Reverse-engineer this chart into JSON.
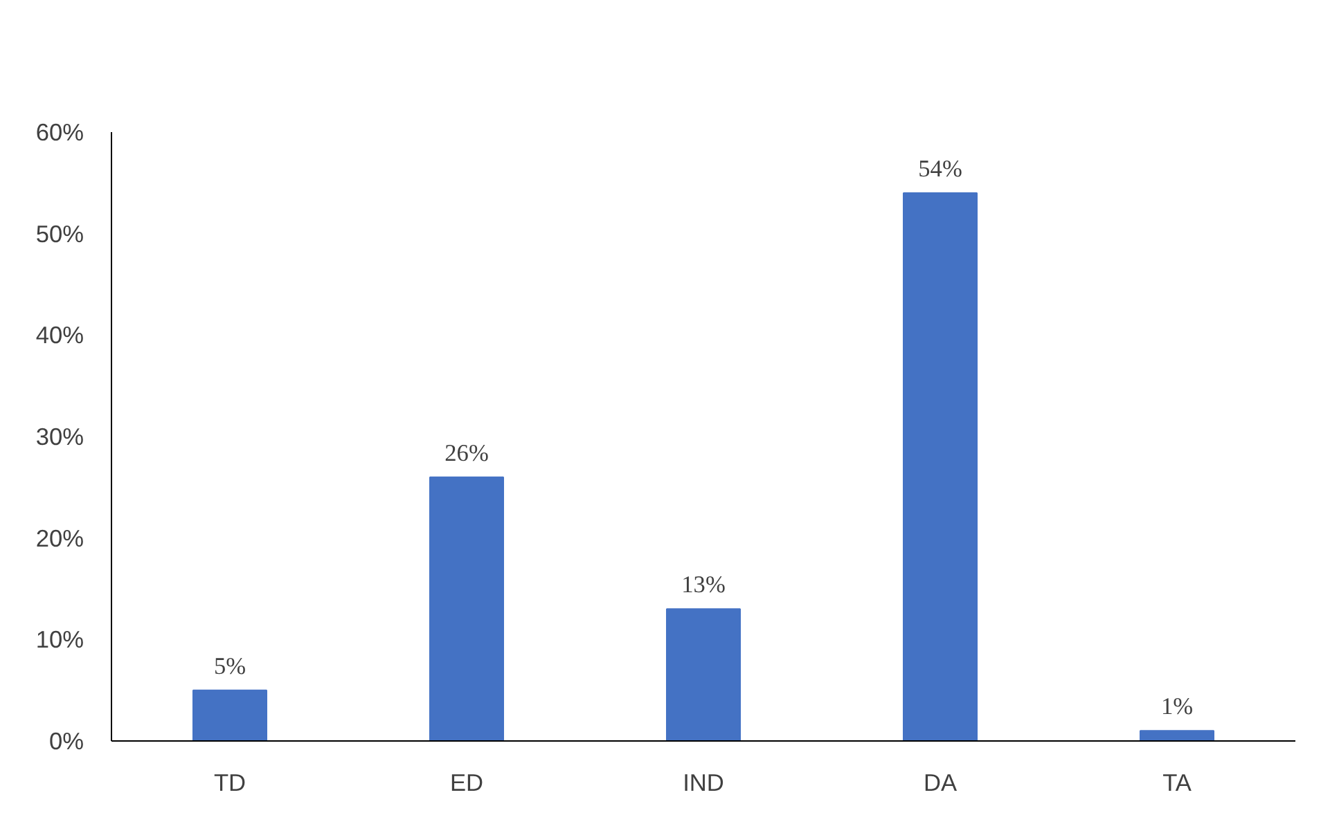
{
  "chart_data": {
    "type": "bar",
    "categories": [
      "TD",
      "ED",
      "IND",
      "DA",
      "TA"
    ],
    "values": [
      5,
      26,
      13,
      54,
      1
    ],
    "value_labels": [
      "5%",
      "26%",
      "13%",
      "54%",
      "1%"
    ],
    "color": "#4472c4",
    "ylim": [
      0,
      60
    ],
    "yticks": [
      {
        "value": 0,
        "label": "0%"
      },
      {
        "value": 10,
        "label": "10%"
      },
      {
        "value": 20,
        "label": "20%"
      },
      {
        "value": 30,
        "label": "30%"
      },
      {
        "value": 40,
        "label": "40%"
      },
      {
        "value": 50,
        "label": "50%"
      },
      {
        "value": 60,
        "label": "60%"
      }
    ],
    "grid": false
  }
}
